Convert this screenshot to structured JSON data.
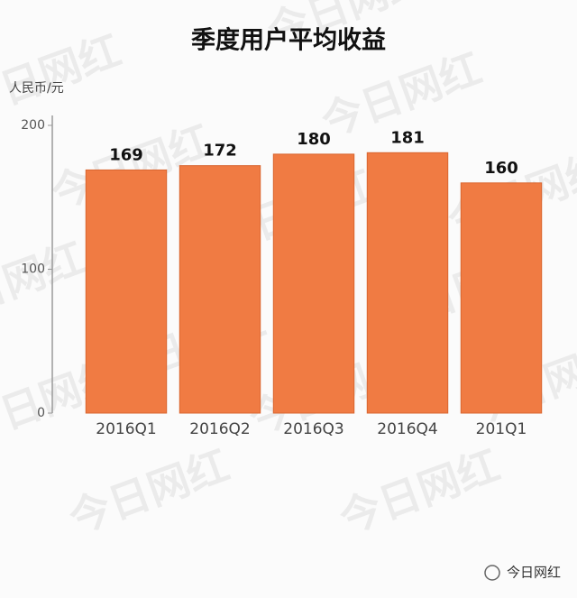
{
  "chart_data": {
    "type": "bar",
    "title": "季度用户平均收益",
    "y_label": "人民币/元",
    "categories": [
      "2016Q1",
      "2016Q2",
      "2016Q3",
      "2016Q4",
      "201Q1"
    ],
    "values": [
      169,
      172,
      180,
      181,
      160
    ],
    "color": "#f07b43",
    "ylim": [
      0,
      200
    ],
    "yticks": [
      0,
      100,
      200
    ],
    "grid": false,
    "data_labels": true
  },
  "watermark": "今日网红",
  "footer": "今日网红"
}
